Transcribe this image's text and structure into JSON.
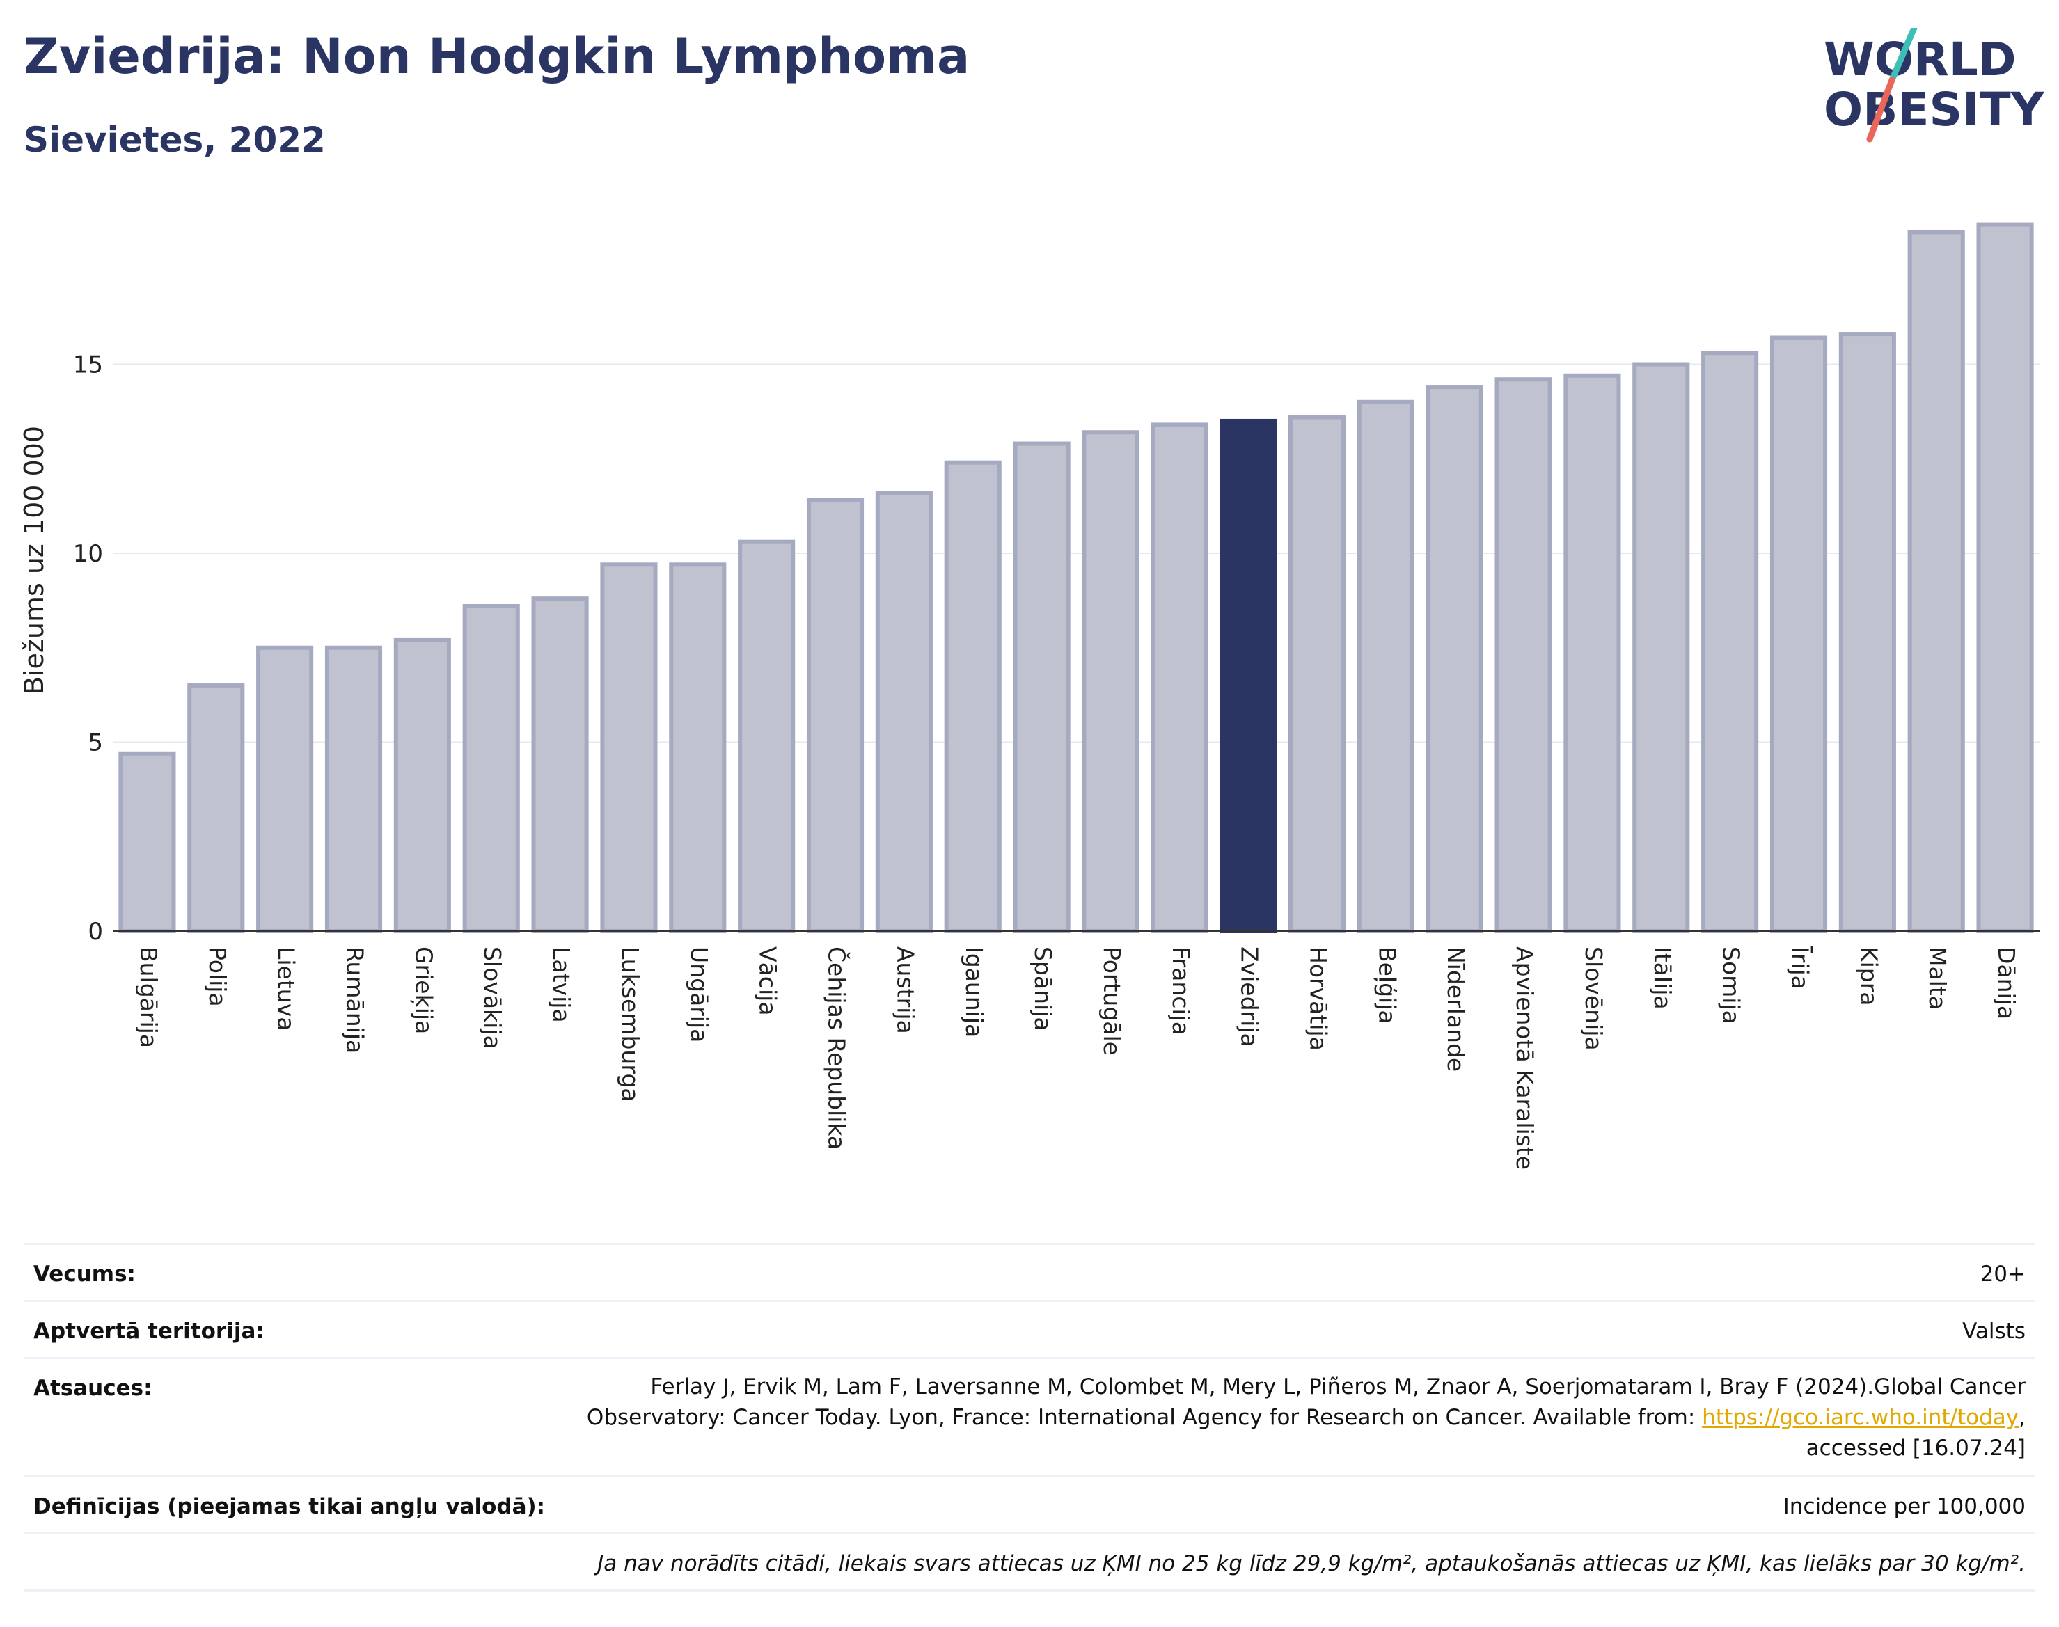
{
  "header": {
    "title": "Zviedrija: Non Hodgkin Lymphoma",
    "subtitle": "Sievietes, 2022"
  },
  "logo": {
    "line1": "WORLD",
    "line2": "OBESITY",
    "accent_colors": [
      "#3dbfb8",
      "#e8675a"
    ],
    "text_color": "#2b3563"
  },
  "chart_data": {
    "type": "bar",
    "ylabel": "Biežums uz 100 000",
    "xlabel": "",
    "ylim": [
      0,
      19.5
    ],
    "yticks": [
      0,
      5,
      10,
      15
    ],
    "grid": true,
    "highlight": "Zviedrija",
    "colors": {
      "bar": "#c0c3cf",
      "bar_border": "#a5aac0",
      "highlight": "#2b3563"
    },
    "categories": [
      "Bulgārija",
      "Polija",
      "Lietuva",
      "Rumānija",
      "Grieķija",
      "Slovākija",
      "Latvija",
      "Luksemburga",
      "Ungārija",
      "Vācija",
      "Čehijas Republika",
      "Austrija",
      "Igaunija",
      "Spānija",
      "Portugāle",
      "Francija",
      "Zviedrija",
      "Horvātija",
      "Beļģija",
      "Nīderlande",
      "Apvienotā Karaliste",
      "Slovēnija",
      "Itālija",
      "Somija",
      "Īrija",
      "Kipra",
      "Malta",
      "Dānija"
    ],
    "values": [
      4.7,
      6.5,
      7.5,
      7.5,
      7.7,
      8.6,
      8.8,
      9.7,
      9.7,
      10.3,
      11.4,
      11.6,
      12.4,
      12.9,
      13.2,
      13.4,
      13.5,
      13.6,
      14.0,
      14.4,
      14.6,
      14.7,
      15.0,
      15.3,
      15.7,
      15.8,
      18.5,
      18.7
    ]
  },
  "meta": {
    "age_label": "Vecums:",
    "age_value": "20+",
    "territory_label": "Aptvertā teritorija:",
    "territory_value": "Valsts",
    "refs_label": "Atsauces:",
    "refs_text_1": "Ferlay J, Ervik M, Lam F, Laversanne M, Colombet M, Mery L, Piñeros M, Znaor A, Soerjomataram I, Bray F (2024).Global Cancer",
    "refs_text_2": "Observatory: Cancer Today. Lyon, France: International Agency for Research on Cancer. Available from: ",
    "refs_link": "https://gco.iarc.who.int/today",
    "refs_text_3": ",",
    "refs_text_4": "accessed [16.07.24]",
    "defs_label": "Definīcijas (pieejamas tikai angļu valodā):",
    "defs_value": "Incidence per 100,000",
    "note": "Ja nav norādīts citādi, liekais svars attiecas uz ĶMI no 25 kg līdz 29,9 kg/m², aptaukošanās attiecas uz ĶMI, kas lielāks par 30 kg/m²."
  }
}
